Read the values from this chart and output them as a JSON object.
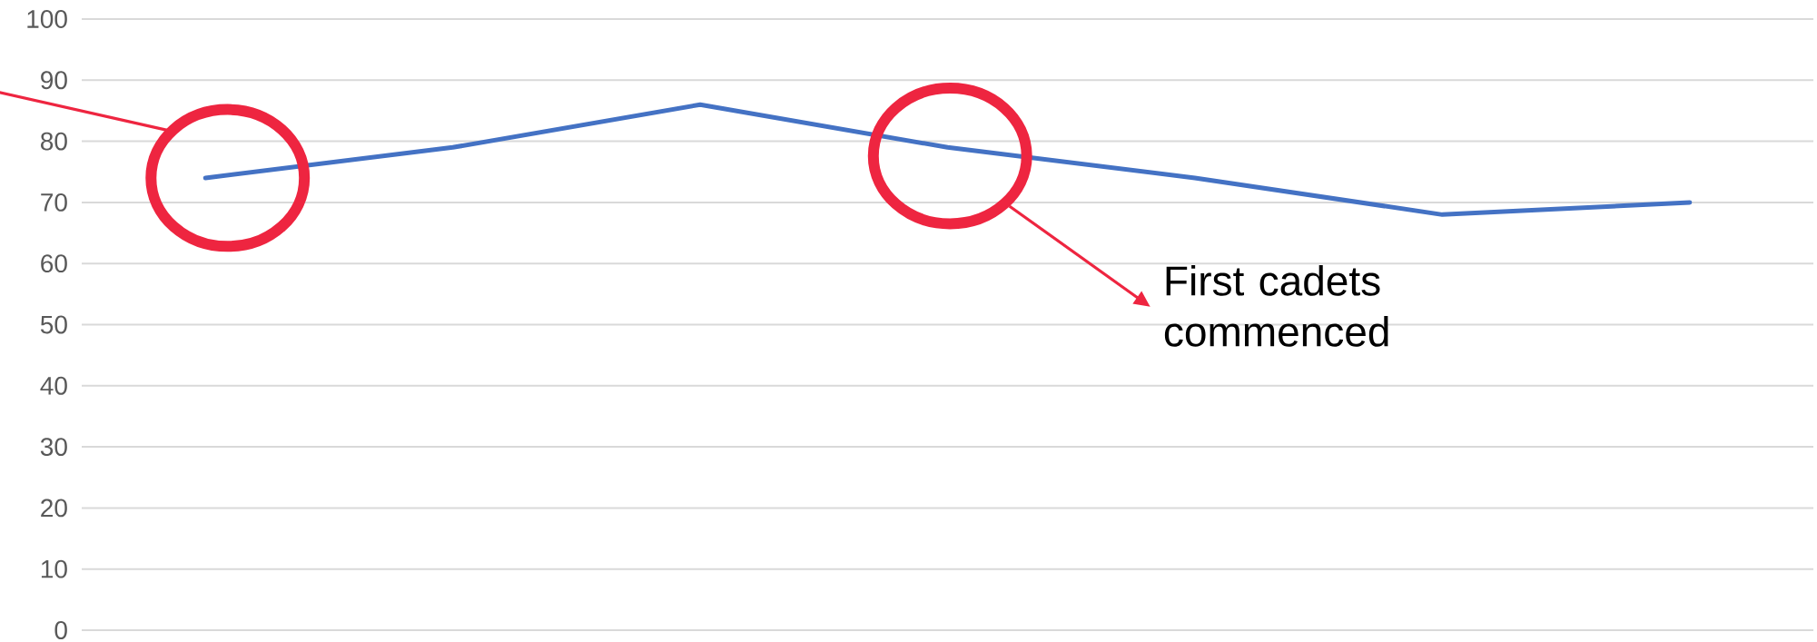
{
  "chart_data": {
    "type": "line",
    "categories": [
      null,
      null,
      null,
      null,
      null,
      null,
      null
    ],
    "values": [
      74,
      79,
      86,
      79,
      74,
      68,
      70
    ],
    "color": "#4472c4",
    "ylim": [
      0,
      100
    ],
    "yticks": [
      0,
      10,
      20,
      30,
      40,
      50,
      60,
      70,
      80,
      90,
      100
    ],
    "grid": "y",
    "tick_labels": "y",
    "annotations": [
      "First cadets commenced"
    ]
  }
}
